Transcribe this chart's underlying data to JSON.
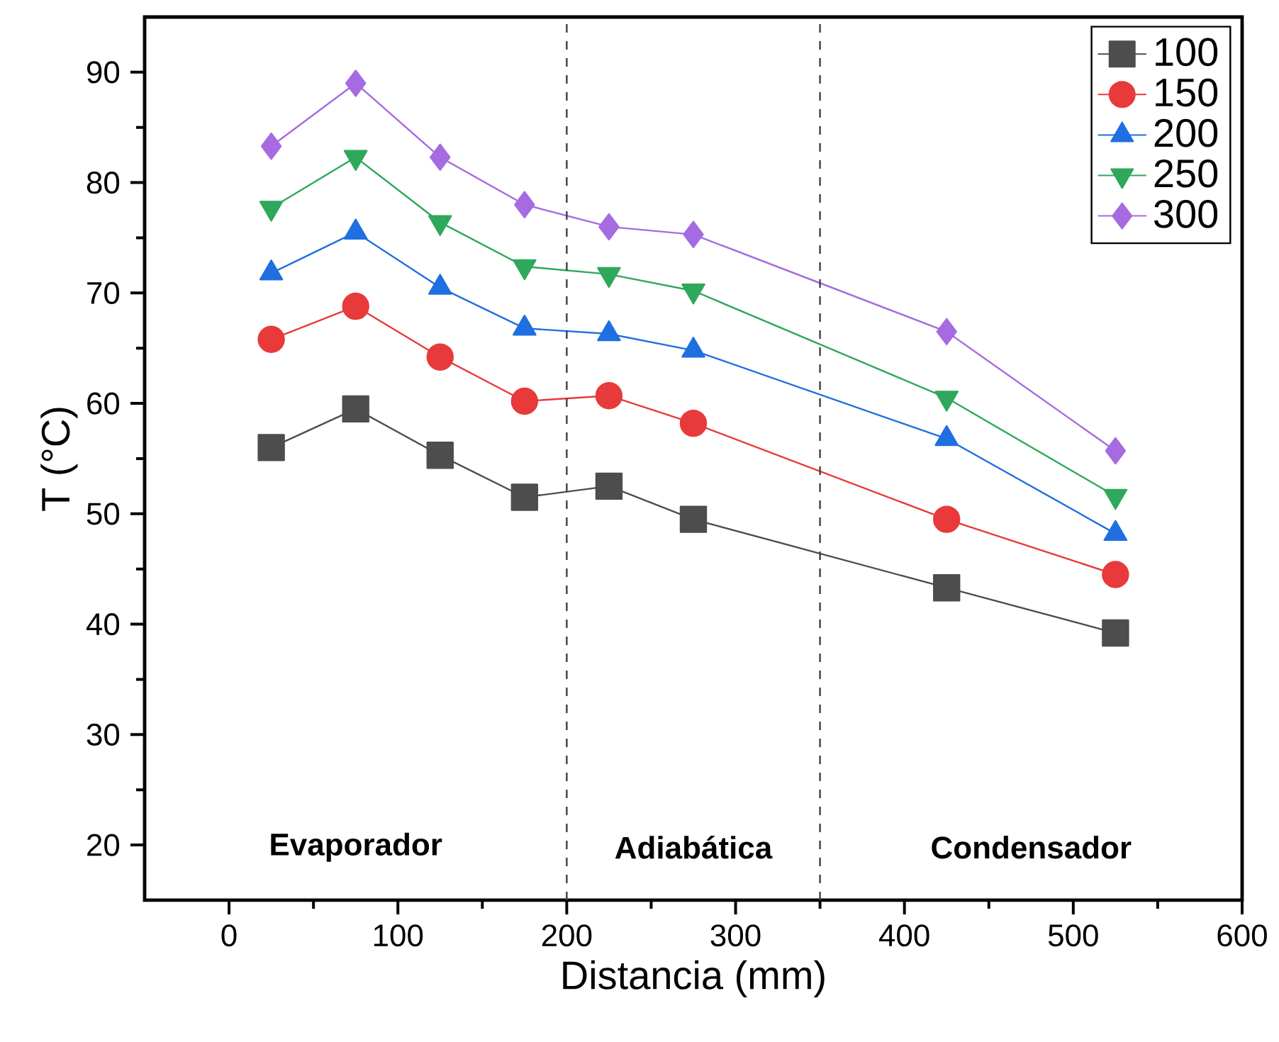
{
  "chart_data": {
    "type": "line",
    "xlabel": "Distancia (mm)",
    "ylabel": "T (°C)",
    "x": [
      25,
      75,
      125,
      175,
      225,
      275,
      425,
      525
    ],
    "series": [
      {
        "name": "100",
        "color": "#4d4d4d",
        "marker": "square",
        "values": [
          56,
          59.5,
          55.3,
          51.5,
          52.5,
          49.5,
          43.3,
          39.2
        ]
      },
      {
        "name": "150",
        "color": "#e83a3a",
        "marker": "circle",
        "values": [
          65.8,
          68.8,
          64.2,
          60.2,
          60.7,
          58.2,
          49.5,
          44.5
        ]
      },
      {
        "name": "200",
        "color": "#1f6fe0",
        "marker": "triangle",
        "values": [
          71.8,
          75.5,
          70.5,
          66.8,
          66.3,
          64.8,
          56.8,
          48.2
        ]
      },
      {
        "name": "250",
        "color": "#2ea85a",
        "marker": "triangle down",
        "values": [
          77.7,
          82.3,
          76.4,
          72.4,
          71.7,
          70.2,
          60.5,
          51.6
        ]
      },
      {
        "name": "300",
        "color": "#a66be0",
        "marker": "diamond",
        "values": [
          83.3,
          89,
          82.3,
          78,
          76,
          75.3,
          66.5,
          55.7
        ]
      }
    ],
    "xlim": [
      -50,
      600
    ],
    "ylim": [
      15,
      95
    ],
    "xticks": [
      0,
      100,
      200,
      300,
      400,
      500,
      600
    ],
    "yticks": [
      20,
      30,
      40,
      50,
      60,
      70,
      80,
      90
    ],
    "ref_lines": [
      {
        "axis": "x",
        "value": 200,
        "color": "#404040",
        "line_style": "dashed"
      },
      {
        "axis": "x",
        "value": 350,
        "color": "#404040",
        "line_style": "dashed"
      }
    ],
    "annotations": [
      "Evaporador",
      "Adiabática",
      "Condensador"
    ],
    "legend": "top right",
    "grid": false,
    "line_style": "solid"
  }
}
